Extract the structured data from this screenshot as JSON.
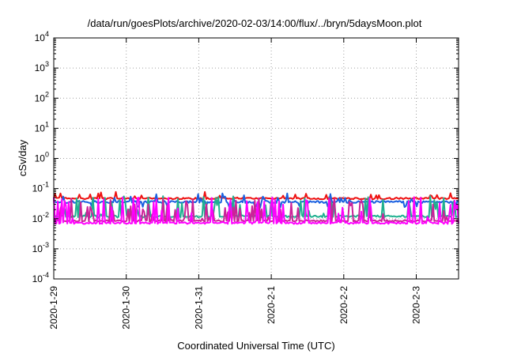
{
  "chart_data": {
    "type": "line",
    "title": "/data/run/goesPlots/archive/2020-02-03/14:00/flux/../bryn/5daysMoon.plot",
    "xlabel": "Coordinated Universal Time (UTC)",
    "ylabel": "cSv/day",
    "yscale": "log",
    "ylim": [
      0.0001,
      10000
    ],
    "xlim": [
      "2020-01-29T00:00",
      "2020-02-03T14:00"
    ],
    "grid": true,
    "legend": "none",
    "y_ticks": [
      {
        "value": 0.0001,
        "base": "10",
        "exp": "-4"
      },
      {
        "value": 0.001,
        "base": "10",
        "exp": "-3"
      },
      {
        "value": 0.01,
        "base": "10",
        "exp": "-2"
      },
      {
        "value": 0.1,
        "base": "10",
        "exp": "-1"
      },
      {
        "value": 1,
        "base": "10",
        "exp": "0"
      },
      {
        "value": 10,
        "base": "10",
        "exp": "1"
      },
      {
        "value": 100,
        "base": "10",
        "exp": "2"
      },
      {
        "value": 1000,
        "base": "10",
        "exp": "3"
      },
      {
        "value": 10000,
        "base": "10",
        "exp": "4"
      }
    ],
    "x_ticks": [
      {
        "value": "2020-01-29T00:00",
        "label": "2020-1-29"
      },
      {
        "value": "2020-01-30T00:00",
        "label": "2020-1-30"
      },
      {
        "value": "2020-01-31T00:00",
        "label": "2020-1-31"
      },
      {
        "value": "2020-02-01T00:00",
        "label": "2020-2-1"
      },
      {
        "value": "2020-02-02T00:00",
        "label": "2020-2-2"
      },
      {
        "value": "2020-02-03T00:00",
        "label": "2020-2-3"
      }
    ],
    "series": [
      {
        "color": "#ee1111",
        "base": 0.047,
        "noise": 0.06,
        "spike_prob": 0.1,
        "spike_mult": 1.6,
        "dip_prob": 0.0,
        "dip_mult": 1.0
      },
      {
        "color": "#1a60e0",
        "base": 0.036,
        "noise": 0.08,
        "spike_prob": 0.1,
        "spike_mult": 2.0,
        "dip_prob": 0.05,
        "dip_mult": 0.7
      },
      {
        "color": "#20b090",
        "base": 0.012,
        "noise": 0.08,
        "spike_prob": 0.18,
        "spike_mult": 4.5,
        "dip_prob": 0.0,
        "dip_mult": 1.0
      },
      {
        "color": "#cc2299",
        "base": 0.0085,
        "noise": 0.06,
        "spike_prob": 0.2,
        "spike_mult": 6.0,
        "dip_prob": 0.0,
        "dip_mult": 1.0
      },
      {
        "color": "#ff00ff",
        "base": 0.0072,
        "noise": 0.07,
        "spike_prob": 0.22,
        "spike_mult": 7.5,
        "dip_prob": 0.0,
        "dip_mult": 1.0
      }
    ]
  }
}
